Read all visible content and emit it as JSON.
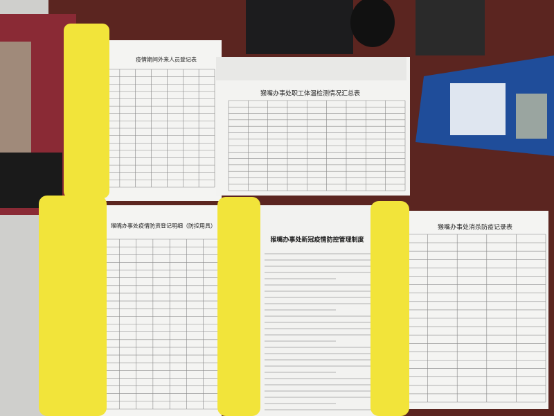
{
  "documents": [
    {
      "title": "疫情期间外来人员登记表"
    },
    {
      "title": "猴嘴办事处职工体温检测情况汇总表"
    },
    {
      "title": "猴嘴办事处疫情防资登记明细（防控用具）"
    },
    {
      "title": "猴嘴办事处新冠疫情防控管理制度"
    },
    {
      "title": "猴嘴办事处消杀防疫记录表"
    }
  ]
}
